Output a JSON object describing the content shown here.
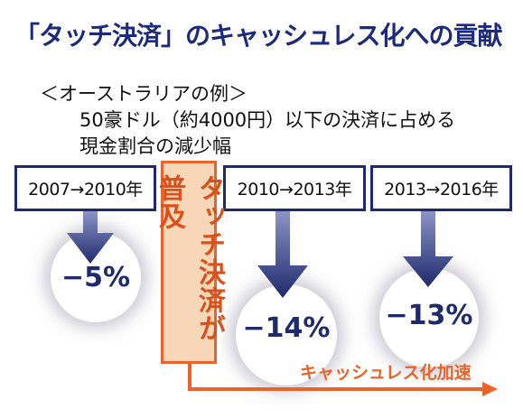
{
  "title": "「タッチ決済」のキャッシュレス化への貢献",
  "subtitle_lines": [
    "＜オーストラリアの例＞",
    "50豪ドル（約4000円）以下の決済に占める",
    "現金割合の減少幅"
  ],
  "periods": [
    {
      "label": "2007→2010年",
      "reduction": "−5%"
    },
    {
      "label": "2010→2013年",
      "reduction": "−14%"
    },
    {
      "label": "2013→2016年",
      "reduction": "−13%"
    }
  ],
  "event_label": "タッチ決済が普及",
  "acceleration_label": "キャッシュレス化加速",
  "colors": {
    "navy": "#1e2a6c",
    "orange": "#e8642a",
    "orange_fill": "#f7d7b8"
  }
}
